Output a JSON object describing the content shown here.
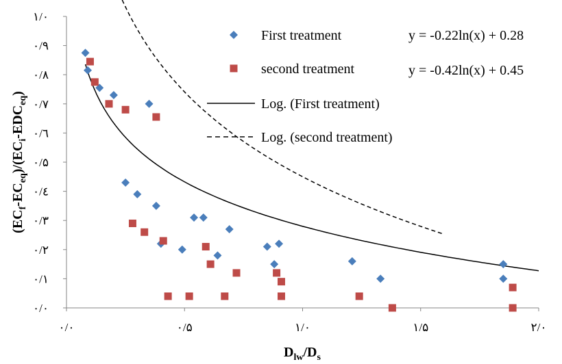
{
  "chart_data": {
    "type": "scatter",
    "xlabel": {
      "main": "D",
      "sub1": "lw",
      "mid": "/D",
      "sub2": "s"
    },
    "ylabel": {
      "p1": "(EC",
      "s1": "f",
      "p2": "-EC",
      "s2": "eq",
      "p3": ")/(EC",
      "s3": "i",
      "p4": "-EDC",
      "s4": "eq",
      "p5": ")"
    },
    "xlim": [
      0,
      2.0
    ],
    "ylim": [
      0,
      1.0
    ],
    "x_ticks": [
      {
        "value": 0,
        "label": "۰/۰"
      },
      {
        "value": 0.5,
        "label": "۰/۵"
      },
      {
        "value": 1.0,
        "label": "۱/۰"
      },
      {
        "value": 1.5,
        "label": "۱/۵"
      },
      {
        "value": 2.0,
        "label": "۲/۰"
      }
    ],
    "y_ticks": [
      {
        "value": 0,
        "label": "۰/۰"
      },
      {
        "value": 0.1,
        "label": "۰/۱"
      },
      {
        "value": 0.2,
        "label": "۰/۲"
      },
      {
        "value": 0.3,
        "label": "۰/۳"
      },
      {
        "value": 0.4,
        "label": "۰/٤"
      },
      {
        "value": 0.5,
        "label": "۰/۵"
      },
      {
        "value": 0.6,
        "label": "۰/٦"
      },
      {
        "value": 0.7,
        "label": "۰/۷"
      },
      {
        "value": 0.8,
        "label": "۰/۸"
      },
      {
        "value": 0.9,
        "label": "۰/۹"
      },
      {
        "value": 1.0,
        "label": "۱/۰"
      }
    ],
    "grid": false,
    "legend_position": "top-right",
    "series": [
      {
        "name": "First treatment",
        "marker": "diamond",
        "color": "#4a7ebb",
        "points": [
          [
            0.08,
            0.875
          ],
          [
            0.09,
            0.815
          ],
          [
            0.14,
            0.755
          ],
          [
            0.2,
            0.73
          ],
          [
            0.35,
            0.7
          ],
          [
            0.25,
            0.43
          ],
          [
            0.3,
            0.39
          ],
          [
            0.38,
            0.35
          ],
          [
            0.4,
            0.22
          ],
          [
            0.49,
            0.2
          ],
          [
            0.54,
            0.31
          ],
          [
            0.58,
            0.31
          ],
          [
            0.64,
            0.18
          ],
          [
            0.69,
            0.27
          ],
          [
            0.85,
            0.21
          ],
          [
            0.9,
            0.22
          ],
          [
            0.88,
            0.15
          ],
          [
            1.21,
            0.16
          ],
          [
            1.33,
            0.1
          ],
          [
            1.85,
            0.15
          ],
          [
            1.85,
            0.1
          ]
        ]
      },
      {
        "name": "second treatment",
        "marker": "square",
        "color": "#be4b48",
        "points": [
          [
            0.1,
            0.845
          ],
          [
            0.12,
            0.775
          ],
          [
            0.18,
            0.7
          ],
          [
            0.25,
            0.68
          ],
          [
            0.38,
            0.655
          ],
          [
            0.28,
            0.29
          ],
          [
            0.33,
            0.26
          ],
          [
            0.41,
            0.23
          ],
          [
            0.43,
            0.04
          ],
          [
            0.52,
            0.04
          ],
          [
            0.59,
            0.21
          ],
          [
            0.61,
            0.15
          ],
          [
            0.67,
            0.04
          ],
          [
            0.72,
            0.12
          ],
          [
            0.89,
            0.12
          ],
          [
            0.91,
            0.09
          ],
          [
            0.91,
            0.04
          ],
          [
            1.24,
            0.04
          ],
          [
            1.38,
            0.0
          ],
          [
            1.89,
            0.07
          ],
          [
            1.89,
            0.0
          ]
        ]
      }
    ],
    "trendlines": [
      {
        "name": "Log. (First treatment)",
        "style": "solid",
        "a": -0.22,
        "b": 0.28,
        "x_range": [
          0.08,
          2.0
        ]
      },
      {
        "name": "Log. (second treatment)",
        "style": "dashed",
        "a": -0.42,
        "b": 0.45,
        "x_range": [
          0.09,
          1.59
        ]
      }
    ],
    "equations": [
      "y = -0.22ln(x) + 0.28",
      "y = -0.42ln(x) + 0.45"
    ]
  }
}
